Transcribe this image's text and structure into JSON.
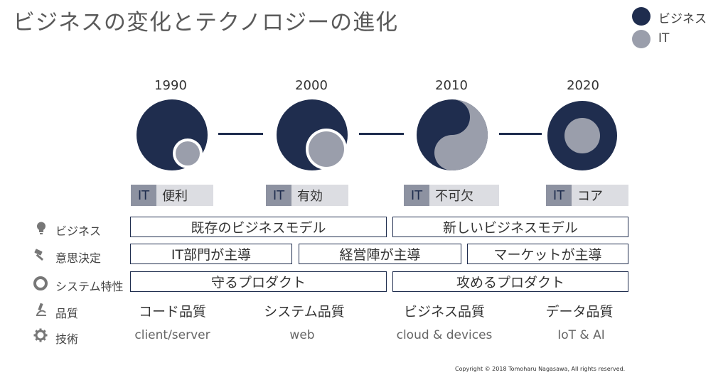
{
  "title": "ビジネスの変化とテクノロジーの進化",
  "legend": [
    {
      "label": "ビジネス",
      "color": "#1f2d4e"
    },
    {
      "label": "IT",
      "color": "#9a9eab"
    }
  ],
  "eras": [
    {
      "year": "1990",
      "tag_it": "IT",
      "tag": "便利"
    },
    {
      "year": "2000",
      "tag_it": "IT",
      "tag": "有効"
    },
    {
      "year": "2010",
      "tag_it": "IT",
      "tag": "不可欠"
    },
    {
      "year": "2020",
      "tag_it": "IT",
      "tag": "コア"
    }
  ],
  "rows": {
    "business": {
      "label": "ビジネス",
      "boxes": [
        "既存のビジネスモデル",
        "新しいビジネスモデル"
      ]
    },
    "decision": {
      "label": "意思決定",
      "boxes": [
        "IT部門が主導",
        "経営陣が主導",
        "マーケットが主導"
      ]
    },
    "system": {
      "label": "システム特性",
      "boxes": [
        "守るプロダクト",
        "攻めるプロダクト"
      ]
    },
    "quality": {
      "label": "品質",
      "cells": [
        "コード品質",
        "システム品質",
        "ビジネス品質",
        "データ品質"
      ]
    },
    "tech": {
      "label": "技術",
      "cells": [
        "client/server",
        "web",
        "cloud & devices",
        "IoT & AI"
      ]
    }
  },
  "copyright": "Copyright © 2018 Tomoharu Nagasawa, All rights reserved."
}
